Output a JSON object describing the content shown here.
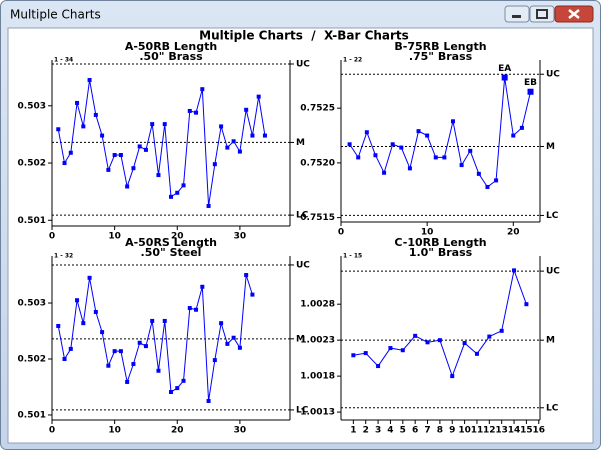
{
  "window": {
    "title": "Multiple Charts"
  },
  "heading": "Multiple Charts  /  X-Bar Charts",
  "chart_data": [
    {
      "type": "line",
      "title": "A-50RB Length",
      "subtitle": ".50\" Brass",
      "range_label": "1 - 34",
      "color": "#0000ff",
      "x": [
        1,
        2,
        3,
        4,
        5,
        6,
        7,
        8,
        9,
        10,
        11,
        12,
        13,
        14,
        15,
        16,
        17,
        18,
        19,
        20,
        21,
        22,
        23,
        24,
        25,
        26,
        27,
        28,
        29,
        30,
        31,
        32,
        33,
        34
      ],
      "values": [
        0.50259,
        0.502,
        0.50218,
        0.50305,
        0.50264,
        0.50345,
        0.50284,
        0.50248,
        0.50188,
        0.50214,
        0.50214,
        0.50159,
        0.50191,
        0.50229,
        0.50223,
        0.50268,
        0.50179,
        0.50268,
        0.50141,
        0.50148,
        0.50161,
        0.50291,
        0.50288,
        0.50329,
        0.50125,
        0.50198,
        0.50264,
        0.50227,
        0.50238,
        0.5022,
        0.50293,
        0.50248,
        0.50316,
        0.50248
      ],
      "xlim": [
        0,
        38
      ],
      "xticks": [
        0,
        10,
        20,
        30
      ],
      "ylim": [
        0.5009,
        0.5038
      ],
      "yticks": [
        0.501,
        0.502,
        0.503
      ],
      "control_lines": [
        {
          "label": "UC",
          "value": 0.50373
        },
        {
          "label": "M",
          "value": 0.50236
        },
        {
          "label": "LC",
          "value": 0.50109
        }
      ]
    },
    {
      "type": "line",
      "title": "B-75RB Length",
      "subtitle": ".75\" Brass",
      "range_label": "1 - 22",
      "color": "#0000ff",
      "x": [
        1,
        2,
        3,
        4,
        5,
        6,
        7,
        8,
        9,
        10,
        11,
        12,
        13,
        14,
        15,
        16,
        17,
        18,
        19,
        20,
        21,
        22
      ],
      "values": [
        0.75217,
        0.75205,
        0.75228,
        0.75207,
        0.75191,
        0.75217,
        0.75214,
        0.75195,
        0.75229,
        0.75225,
        0.75205,
        0.75205,
        0.75238,
        0.75198,
        0.75211,
        0.7519,
        0.75178,
        0.75184,
        0.75278,
        0.75225,
        0.75232,
        0.75265
      ],
      "annotations": [
        {
          "x": 19,
          "text": "EA"
        },
        {
          "x": 22,
          "text": "EB"
        }
      ],
      "xlim": [
        0,
        23.1
      ],
      "xticks": [
        0,
        10,
        20
      ],
      "ylim": [
        0.75146,
        0.75294
      ],
      "yticks": [
        0.7515,
        {
          "value": 0.752,
          "label": "0.7520"
        },
        0.7525
      ],
      "control_lines": [
        {
          "label": "UC",
          "value": 0.75281
        },
        {
          "label": "M",
          "value": 0.75215
        },
        {
          "label": "LC",
          "value": 0.75152
        }
      ]
    },
    {
      "type": "line",
      "title": "A-50RS Length",
      "subtitle": ".50\" Steel",
      "range_label": "1 - 32",
      "color": "#0000ff",
      "x": [
        1,
        2,
        3,
        4,
        5,
        6,
        7,
        8,
        9,
        10,
        11,
        12,
        13,
        14,
        15,
        16,
        17,
        18,
        19,
        20,
        21,
        22,
        23,
        24,
        25,
        26,
        27,
        28,
        29,
        30,
        31,
        32
      ],
      "values": [
        0.50259,
        0.502,
        0.50218,
        0.50305,
        0.50264,
        0.50345,
        0.50284,
        0.50248,
        0.50188,
        0.50214,
        0.50214,
        0.50159,
        0.50191,
        0.50229,
        0.50223,
        0.50268,
        0.50179,
        0.50268,
        0.50141,
        0.50148,
        0.50161,
        0.50291,
        0.50288,
        0.50329,
        0.50125,
        0.50198,
        0.50264,
        0.50227,
        0.50238,
        0.5022,
        0.5035,
        0.50315
      ],
      "xlim": [
        0,
        38
      ],
      "xticks": [
        0,
        10,
        20,
        30
      ],
      "ylim": [
        0.50091,
        0.50384
      ],
      "yticks": [
        0.501,
        0.502,
        0.503
      ],
      "control_lines": [
        {
          "label": "UC",
          "value": 0.50368
        },
        {
          "label": "M",
          "value": 0.50236
        },
        {
          "label": "LC",
          "value": 0.50109
        }
      ]
    },
    {
      "type": "line",
      "title": "C-10RB Length",
      "subtitle": "1.0\" Brass",
      "range_label": "1 - 15",
      "color": "#0000ff",
      "x": [
        1,
        2,
        3,
        4,
        5,
        6,
        7,
        8,
        9,
        10,
        11,
        12,
        13,
        14,
        15
      ],
      "values": [
        1.00209,
        1.00212,
        1.00194,
        1.00219,
        1.00216,
        1.00236,
        1.00227,
        1.0023,
        1.0018,
        1.00226,
        1.00211,
        1.00235,
        1.00243,
        1.00327,
        1.0028
      ],
      "xlim": [
        0,
        16.1
      ],
      "xticks": [
        1,
        2,
        3,
        4,
        5,
        6,
        7,
        8,
        9,
        10,
        11,
        12,
        13,
        14,
        15,
        16
      ],
      "ylim": [
        1.00119,
        1.00347
      ],
      "yticks": [
        1.0013,
        1.0018,
        1.0023,
        1.0028
      ],
      "control_lines": [
        {
          "label": "UC",
          "value": 1.00326
        },
        {
          "label": "M",
          "value": 1.0023
        },
        {
          "label": "LC",
          "value": 1.00136
        }
      ]
    }
  ]
}
